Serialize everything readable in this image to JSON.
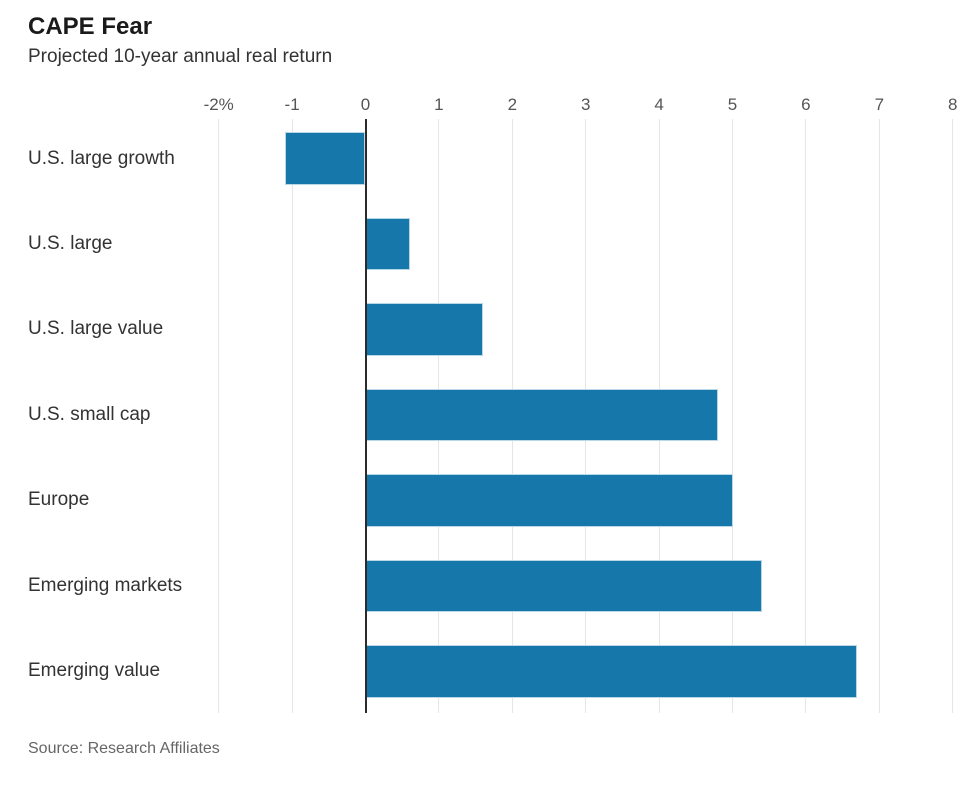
{
  "chart_data": {
    "type": "bar",
    "orientation": "horizontal",
    "title": "CAPE Fear",
    "subtitle": "Projected 10-year annual real return",
    "categories": [
      "U.S. large growth",
      "U.S. large",
      "U.S. large value",
      "U.S. small cap",
      "Europe",
      "Emerging markets",
      "Emerging value"
    ],
    "values": [
      -1.1,
      0.6,
      1.6,
      4.8,
      5.0,
      5.4,
      6.7
    ],
    "xlabel": "",
    "ylabel": "",
    "xlim": [
      -2,
      8
    ],
    "x_ticks": [
      -2,
      -1,
      0,
      1,
      2,
      3,
      4,
      5,
      6,
      7,
      8
    ],
    "x_tick_labels": [
      "-2%",
      "-1",
      "0",
      "1",
      "2",
      "3",
      "4",
      "5",
      "6",
      "7",
      "8"
    ],
    "grid": true,
    "legend": false,
    "bar_color": "#1577aa",
    "zero_line_color": "#2b2b2b",
    "gridline_color": "#e6e6e6"
  },
  "source": "Source: Research Affiliates"
}
